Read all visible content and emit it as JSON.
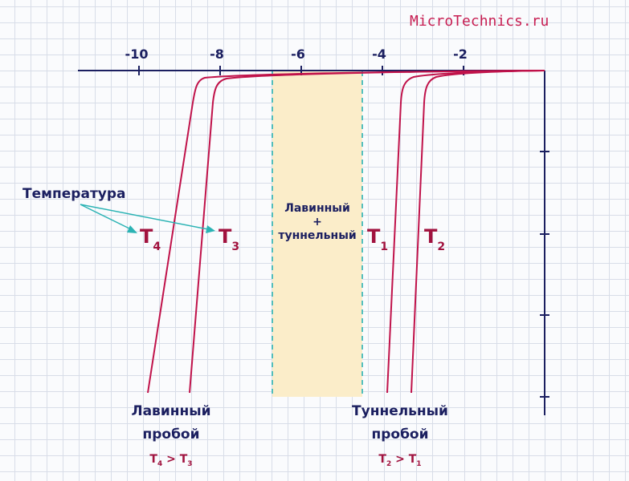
{
  "site_title": "MicroTechnics.ru",
  "axis_ticks": [
    "-10",
    "-8",
    "-6",
    "-4",
    "-2"
  ],
  "region_label": {
    "line1": "Лавинный",
    "line2": "+",
    "line3": "туннельный"
  },
  "temperature_label": "Температура",
  "curves": {
    "t4": {
      "letter": "T",
      "sub": "4"
    },
    "t3": {
      "letter": "T",
      "sub": "3"
    },
    "t1": {
      "letter": "T",
      "sub": "1"
    },
    "t2": {
      "letter": "T",
      "sub": "2"
    }
  },
  "avalanche_caption": {
    "line1": "Лавинный",
    "line2": "пробой",
    "rel_a": "T",
    "rel_a_sub": "4",
    "op": " > ",
    "rel_b": "T",
    "rel_b_sub": "3"
  },
  "tunnel_caption": {
    "line1": "Туннельный",
    "line2": "пробой",
    "rel_a": "T",
    "rel_a_sub": "2",
    "op": " > ",
    "rel_b": "T",
    "rel_b_sub": "1"
  },
  "colors": {
    "axis": "#1b1f60",
    "curve": "#c0124a",
    "arrow": "#2bb3b4",
    "dashed": "#2bb3b4",
    "band": "#fbedc9",
    "accent": "#c71e52"
  }
}
